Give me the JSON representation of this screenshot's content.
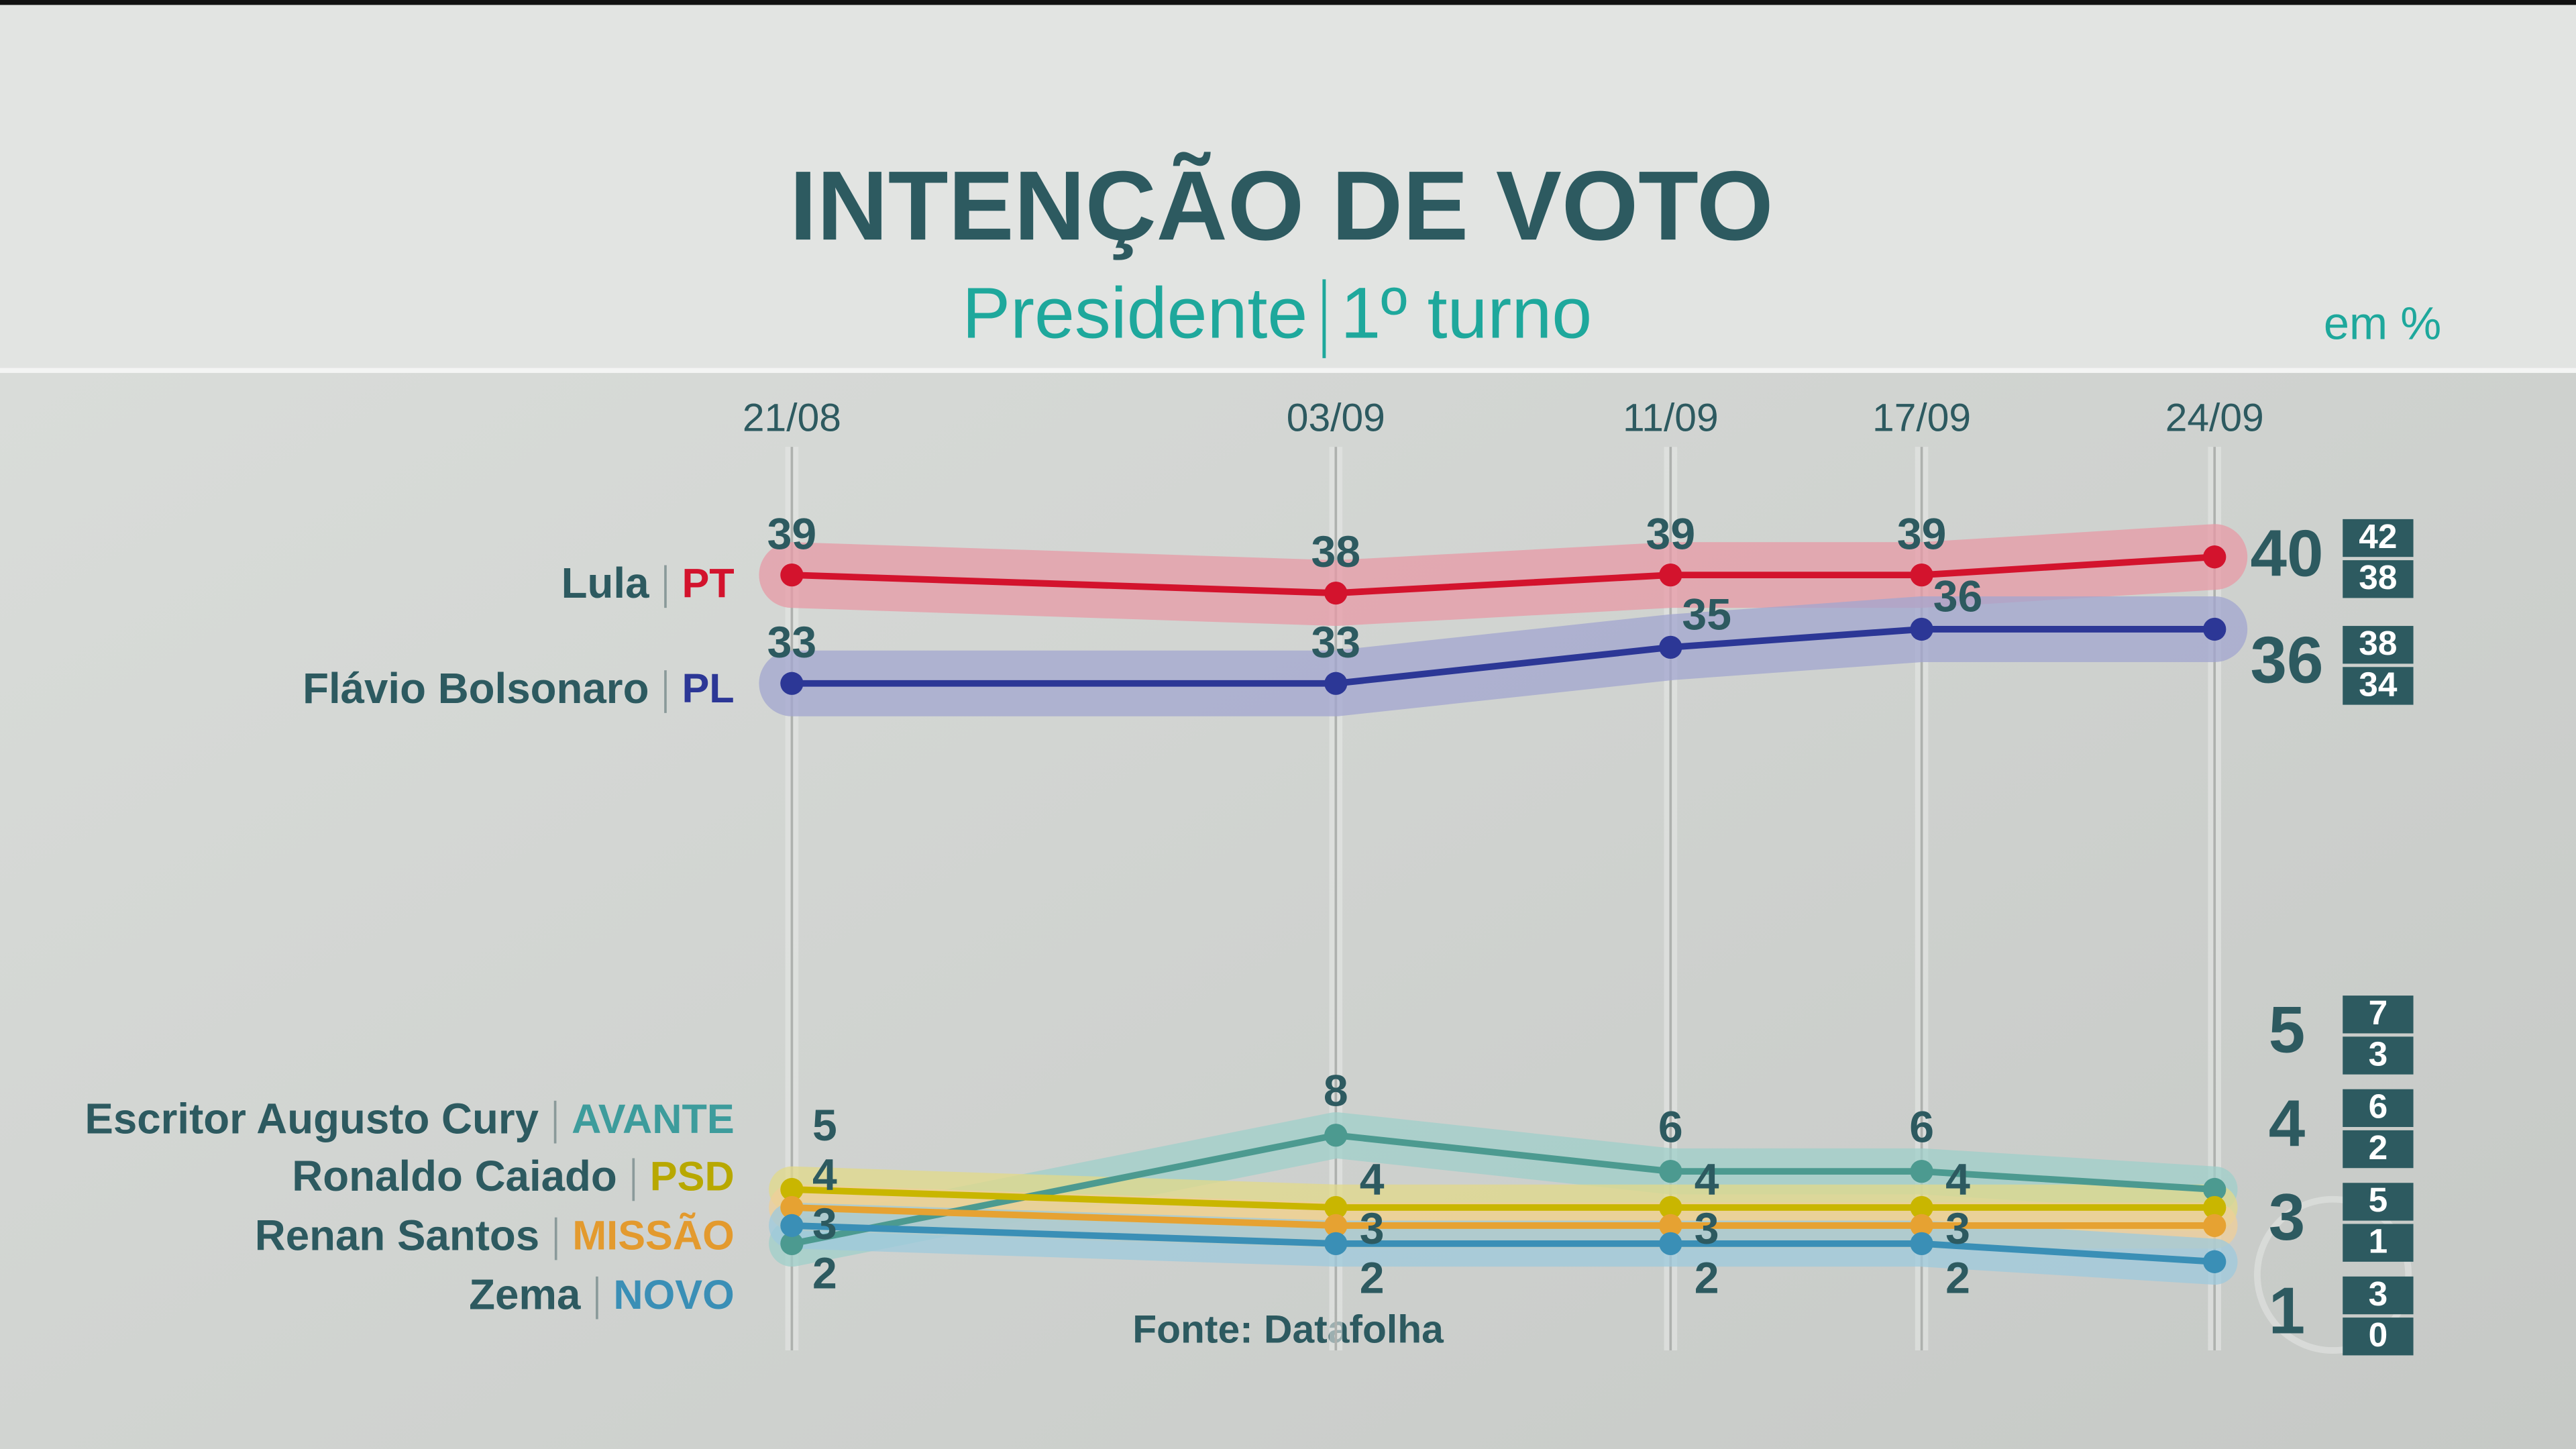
{
  "chart_data": {
    "type": "line",
    "title": "INTENÇÃO DE VOTO",
    "subtitle": [
      "Presidente",
      "1º turno"
    ],
    "unit_label": "em %",
    "source": "Fonte: Datafolha",
    "x": [
      "21/08",
      "03/09",
      "11/09",
      "17/09",
      "24/09"
    ],
    "series": [
      {
        "name": "Lula",
        "party": "PT",
        "color": "#d3132d",
        "party_color": "#d3132d",
        "band_color": "#e79aa5",
        "values": [
          39,
          38,
          39,
          39,
          40
        ],
        "margin": [
          42,
          38
        ]
      },
      {
        "name": "Flávio Bolsonaro",
        "party": "PL",
        "color": "#2c3796",
        "party_color": "#2c3796",
        "band_color": "#a2a6cf",
        "values": [
          33,
          33,
          35,
          36,
          36
        ],
        "margin": [
          38,
          34
        ]
      },
      {
        "name": "Escritor Augusto Cury",
        "party": "AVANTE",
        "color": "#4c9a90",
        "party_color": "#3d9c9c",
        "band_color": "#9fcfca",
        "values": [
          2,
          8,
          6,
          6,
          5
        ],
        "margin": [
          7,
          3
        ]
      },
      {
        "name": "Ronaldo Caiado",
        "party": "PSD",
        "color": "#c9b600",
        "party_color": "#b8a800",
        "band_color": "#e2da8a",
        "values": [
          5,
          4,
          4,
          4,
          4
        ],
        "margin": [
          6,
          2
        ]
      },
      {
        "name": "Renan Santos",
        "party": "MISSÃO",
        "color": "#e6a232",
        "party_color": "#e39a2e",
        "band_color": "#efcf98",
        "values": [
          4,
          3,
          3,
          3,
          3
        ],
        "margin": [
          5,
          1
        ]
      },
      {
        "name": "Zema",
        "party": "NOVO",
        "color": "#3a8fb6",
        "party_color": "#3a8fb6",
        "band_color": "#9ec9dc",
        "values": [
          3,
          2,
          2,
          2,
          1
        ],
        "margin": [
          3,
          0
        ]
      }
    ]
  }
}
